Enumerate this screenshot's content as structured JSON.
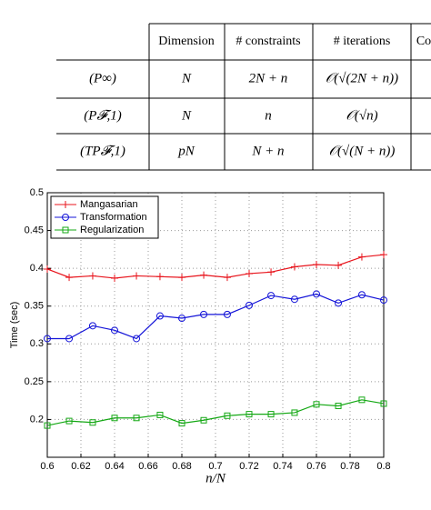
{
  "table": {
    "columns": [
      "Dimension",
      "# constraints",
      "# iterations",
      "Co"
    ],
    "rows": [
      [
        "(P∞)",
        "N",
        "2N + n",
        "𝒪(√(2N + n))"
      ],
      [
        "(P𝓕,1)",
        "N",
        "n",
        "𝒪(√n)"
      ],
      [
        "(TP𝓕,1)",
        "pN",
        "N + n",
        "𝒪(√(N + n))"
      ]
    ]
  },
  "chart_data": {
    "type": "line",
    "xlabel": "n/N",
    "ylabel": "Time (sec)",
    "x": [
      0.6,
      0.613,
      0.627,
      0.64,
      0.653,
      0.667,
      0.68,
      0.693,
      0.707,
      0.72,
      0.733,
      0.747,
      0.76,
      0.773,
      0.787,
      0.8
    ],
    "series": [
      {
        "name": "Mangasarian",
        "color": "#e8141c",
        "marker": "plus",
        "values": [
          0.399,
          0.388,
          0.39,
          0.387,
          0.39,
          0.389,
          0.388,
          0.391,
          0.388,
          0.393,
          0.395,
          0.402,
          0.405,
          0.404,
          0.415,
          0.418
        ]
      },
      {
        "name": "Transformation",
        "color": "#1414d8",
        "marker": "circle",
        "values": [
          0.307,
          0.307,
          0.324,
          0.318,
          0.307,
          0.337,
          0.334,
          0.339,
          0.339,
          0.351,
          0.364,
          0.359,
          0.366,
          0.354,
          0.365,
          0.358
        ]
      },
      {
        "name": "Regularization",
        "color": "#14a814",
        "marker": "square",
        "values": [
          0.192,
          0.198,
          0.196,
          0.202,
          0.202,
          0.206,
          0.195,
          0.199,
          0.205,
          0.207,
          0.207,
          0.209,
          0.22,
          0.218,
          0.226,
          0.221
        ]
      }
    ],
    "xlim": [
      0.6,
      0.8
    ],
    "xticks": [
      0.6,
      0.62,
      0.64,
      0.66,
      0.68,
      0.7,
      0.72,
      0.74,
      0.76,
      0.78,
      0.8
    ],
    "ylim": [
      0.15,
      0.5
    ],
    "yticks": [
      0.2,
      0.25,
      0.3,
      0.35,
      0.4,
      0.45,
      0.5
    ],
    "grid": true,
    "legend": "upper-left"
  }
}
